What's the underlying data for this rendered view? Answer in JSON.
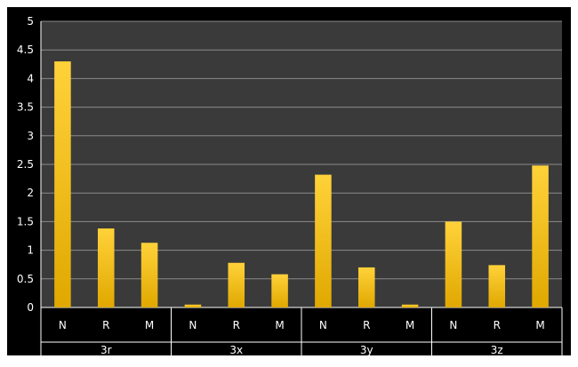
{
  "chart_data": {
    "type": "bar",
    "groups": [
      {
        "label": "3r",
        "categories": [
          "N",
          "R",
          "M"
        ],
        "values": [
          4.3,
          1.38,
          1.13
        ]
      },
      {
        "label": "3x",
        "categories": [
          "N",
          "R",
          "M"
        ],
        "values": [
          0.05,
          0.78,
          0.58
        ]
      },
      {
        "label": "3y",
        "categories": [
          "N",
          "R",
          "M"
        ],
        "values": [
          2.32,
          0.7,
          0.05
        ]
      },
      {
        "label": "3z",
        "categories": [
          "N",
          "R",
          "M"
        ],
        "values": [
          1.5,
          0.74,
          2.48
        ]
      }
    ],
    "ylim": [
      0,
      5
    ],
    "yticks": [
      "0",
      "0.5",
      "1",
      "1.5",
      "2",
      "2.5",
      "3",
      "3.5",
      "4",
      "4.5",
      "5"
    ],
    "grid": true,
    "colors": {
      "bar_top": "#ffd23a",
      "bar_bottom": "#e0a800",
      "plot_bg": "#3a3a3a",
      "frame_bg": "#000000",
      "grid": "#8a8a8a"
    }
  }
}
